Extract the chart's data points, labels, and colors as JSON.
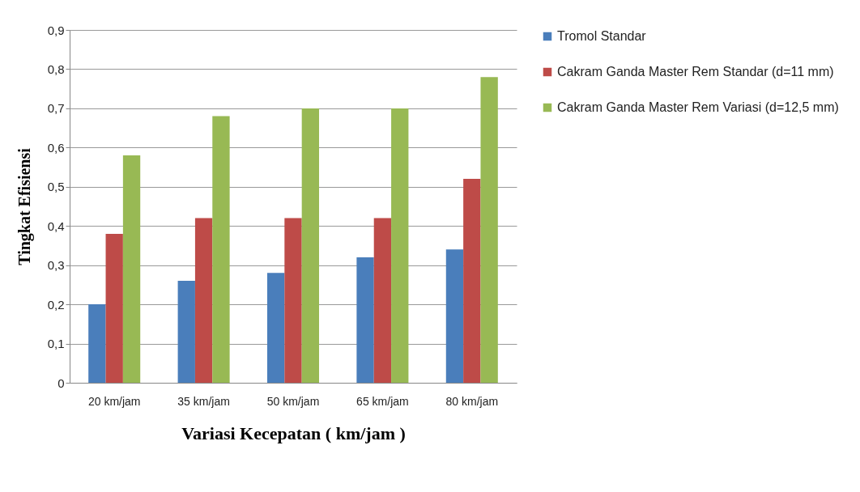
{
  "chart_data": {
    "type": "bar",
    "xlabel": "Variasi Kecepatan ( km/jam )",
    "ylabel": "Tingkat Efisiensi",
    "categories": [
      "20 km/jam",
      "35 km/jam",
      "50 km/jam",
      "65 km/jam",
      "80 km/jam"
    ],
    "series": [
      {
        "name": "Tromol Standar",
        "color": "#4a7ebb",
        "values": [
          0.2,
          0.26,
          0.28,
          0.32,
          0.34
        ]
      },
      {
        "name": "Cakram Ganda Master Rem Standar (d=11 mm)",
        "color": "#be4b48",
        "values": [
          0.38,
          0.42,
          0.42,
          0.42,
          0.52
        ]
      },
      {
        "name": "Cakram Ganda Master Rem Variasi (d=12,5 mm)",
        "color": "#98b954",
        "values": [
          0.58,
          0.68,
          0.7,
          0.7,
          0.78
        ]
      }
    ],
    "ylim": [
      0,
      0.9
    ],
    "yticks": [
      {
        "value": 0,
        "label": "0"
      },
      {
        "value": 0.1,
        "label": "0,1"
      },
      {
        "value": 0.2,
        "label": "0,2"
      },
      {
        "value": 0.3,
        "label": "0,3"
      },
      {
        "value": 0.4,
        "label": "0,4"
      },
      {
        "value": 0.5,
        "label": "0,5"
      },
      {
        "value": 0.6,
        "label": "0,6"
      },
      {
        "value": 0.7,
        "label": "0,7"
      },
      {
        "value": 0.8,
        "label": "0,8"
      },
      {
        "value": 0.9,
        "label": "0,9"
      }
    ],
    "grid": "y",
    "legend": "right"
  }
}
